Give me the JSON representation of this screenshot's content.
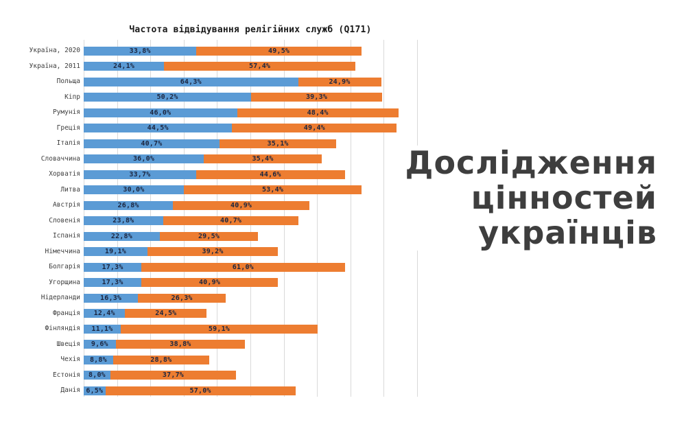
{
  "headline": {
    "lines": [
      "Дослідження",
      "цінностей",
      "українців"
    ],
    "color": "#3e3e3e"
  },
  "colors": {
    "gridline": "#d9d9d9",
    "title": "#1a1a1a",
    "category_label": "#3d3d3d",
    "value_label": "#1c2640",
    "background": "#ffffff"
  },
  "chart_data": {
    "type": "bar",
    "orientation": "horizontal",
    "stacked": true,
    "title": "Частота відвідування релігійних служб (Q171)",
    "xlabel": "",
    "ylabel": "",
    "xlim": [
      0,
      100
    ],
    "gridline_step": 10,
    "grid": true,
    "legend_position": "none",
    "value_label_format": "comma-decimal-percent",
    "categories": [
      "Україна, 2020",
      "Україна, 2011",
      "Польща",
      "Кіпр",
      "Румунія",
      "Греція",
      "Італія",
      "Словаччина",
      "Хорватія",
      "Литва",
      "Австрія",
      "Словенія",
      "Іспанія",
      "Німеччина",
      "Болгарія",
      "Угорщина",
      "Нідерланди",
      "Франція",
      "Фінляндія",
      "Швеція",
      "Чехія",
      "Естонія",
      "Данія"
    ],
    "series": [
      {
        "name": "blue",
        "color": "#5b9bd5",
        "values": [
          33.8,
          24.1,
          64.3,
          50.2,
          46.0,
          44.5,
          40.7,
          36.0,
          33.7,
          30.0,
          26.8,
          23.8,
          22.8,
          19.1,
          17.3,
          17.3,
          16.3,
          12.4,
          11.1,
          9.6,
          8.8,
          8.0,
          6.5
        ]
      },
      {
        "name": "orange",
        "color": "#ed7d31",
        "values": [
          49.5,
          57.4,
          24.9,
          39.3,
          48.4,
          49.4,
          35.1,
          35.4,
          44.6,
          53.4,
          40.9,
          40.7,
          29.5,
          39.2,
          61.0,
          40.9,
          26.3,
          24.5,
          59.1,
          38.8,
          28.8,
          37.7,
          57.0
        ]
      }
    ]
  }
}
